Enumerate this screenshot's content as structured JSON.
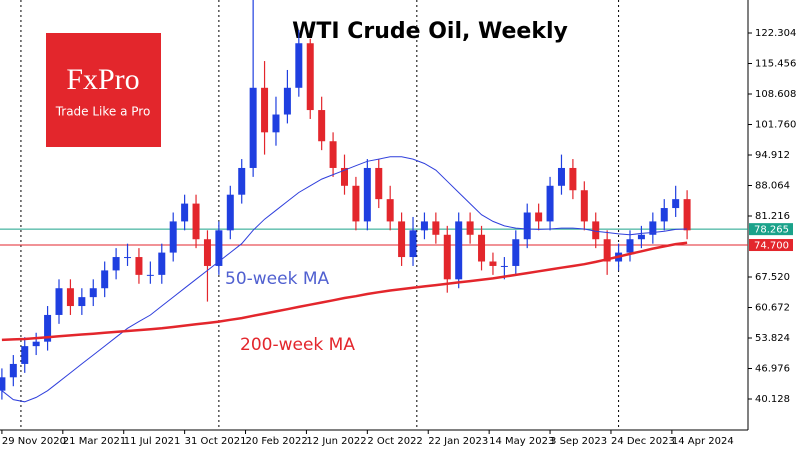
{
  "chart_data": {
    "type": "candlestick",
    "title": "WTI Crude Oil, Weekly",
    "logo": {
      "name": "FxPro",
      "tagline": "Trade Like a Pro"
    },
    "x": [
      0,
      3,
      6,
      9,
      12,
      15,
      18,
      21,
      24,
      27,
      30,
      33,
      36,
      39,
      42,
      45,
      48,
      51,
      54,
      57,
      60,
      63,
      66,
      69,
      72,
      75,
      78,
      81,
      84,
      87,
      90,
      93,
      96,
      99,
      102,
      105,
      108,
      111,
      114,
      117,
      120,
      123,
      126,
      129,
      132,
      135,
      138,
      141,
      144,
      147,
      150,
      153,
      156,
      159,
      162,
      165,
      168,
      171,
      174,
      177,
      180
    ],
    "open": [
      42,
      45,
      48,
      52,
      53,
      59,
      65,
      61,
      63,
      65,
      69,
      72,
      72,
      68,
      68,
      73,
      80,
      84,
      76,
      70,
      78,
      86,
      92,
      110,
      100,
      104,
      110,
      120,
      105,
      98,
      92,
      88,
      80,
      92,
      85,
      80,
      72,
      78,
      80,
      77,
      67,
      80,
      77,
      71,
      70,
      70,
      76,
      82,
      80,
      88,
      92,
      87,
      80,
      76,
      71,
      73,
      76,
      77,
      80,
      83,
      85
    ],
    "high": [
      47,
      50,
      54,
      55,
      61,
      67,
      67,
      65,
      67,
      71,
      74,
      75,
      74,
      71,
      75,
      82,
      86,
      86,
      78,
      80,
      88,
      94,
      130,
      116,
      108,
      114,
      123,
      121,
      108,
      100,
      95,
      90,
      94,
      94,
      88,
      82,
      81,
      82,
      82,
      79,
      82,
      82,
      79,
      73,
      72,
      78,
      84,
      84,
      90,
      95,
      94,
      89,
      82,
      78,
      75,
      78,
      79,
      82,
      85,
      88,
      87
    ],
    "low": [
      40,
      43,
      46,
      50,
      51,
      57,
      59,
      59,
      61,
      63,
      67,
      70,
      66,
      66,
      66,
      71,
      78,
      74,
      62,
      68,
      76,
      84,
      90,
      95,
      97,
      102,
      108,
      103,
      96,
      90,
      86,
      78,
      78,
      83,
      78,
      70,
      70,
      76,
      75,
      64,
      65,
      75,
      69,
      68,
      67,
      68,
      74,
      78,
      78,
      86,
      85,
      78,
      74,
      68,
      69,
      71,
      74,
      75,
      78,
      81,
      76
    ],
    "close": [
      45,
      48,
      52,
      53,
      59,
      65,
      61,
      63,
      65,
      69,
      72,
      72,
      68,
      68,
      73,
      80,
      84,
      76,
      70,
      78,
      86,
      92,
      110,
      100,
      104,
      110,
      120,
      105,
      98,
      92,
      88,
      80,
      92,
      85,
      80,
      72,
      78,
      80,
      77,
      67,
      80,
      77,
      71,
      70,
      70,
      76,
      82,
      80,
      88,
      92,
      87,
      80,
      76,
      71,
      73,
      76,
      77,
      80,
      83,
      85,
      78
    ],
    "up_color": "#1f3fe0",
    "down_color": "#e3262c",
    "series": [
      {
        "name": "50-week MA",
        "color": "#2f3fdc",
        "width": 1,
        "label_color": "#5060d0",
        "values": [
          42,
          40,
          39.5,
          40.5,
          42,
          44,
          46,
          48,
          50,
          52,
          54,
          56,
          57.5,
          59,
          61,
          63,
          65,
          67,
          69,
          71,
          73,
          75,
          78,
          80.5,
          82.5,
          84.5,
          86.5,
          88,
          89.5,
          90.5,
          91.5,
          92.5,
          93.5,
          94,
          94.5,
          94.5,
          94,
          93,
          91.5,
          89,
          86.5,
          84,
          81.5,
          80,
          79,
          78.5,
          78.3,
          78.2,
          78.3,
          78.5,
          78.5,
          78.3,
          77.8,
          77.5,
          77.2,
          77,
          77.3,
          77.5,
          77.8,
          78.2,
          78.3
        ]
      },
      {
        "name": "200-week MA",
        "color": "#e3262c",
        "width": 2.5,
        "label_color": "#e3262c",
        "values": [
          53.4,
          53.5,
          53.6,
          53.8,
          54,
          54.2,
          54.4,
          54.6,
          54.8,
          55,
          55.2,
          55.4,
          55.6,
          55.8,
          56,
          56.3,
          56.6,
          56.9,
          57.2,
          57.5,
          57.9,
          58.3,
          58.8,
          59.3,
          59.8,
          60.3,
          60.8,
          61.3,
          61.8,
          62.3,
          62.8,
          63.2,
          63.7,
          64.1,
          64.5,
          64.8,
          65.1,
          65.4,
          65.7,
          66,
          66.3,
          66.6,
          66.9,
          67.2,
          67.6,
          68,
          68.4,
          68.8,
          69.2,
          69.6,
          70,
          70.4,
          70.9,
          71.5,
          72.1,
          72.7,
          73.3,
          73.9,
          74.4,
          74.9,
          75.2
        ]
      }
    ],
    "hlines": [
      {
        "value": 78.265,
        "color": "#1aa28a"
      },
      {
        "value": 74.7,
        "label": "74.700",
        "color": "#e3262c"
      }
    ],
    "separators": [
      5,
      57,
      109,
      162
    ],
    "xlim": [
      -0.5,
      196
    ],
    "ylim": [
      33.17,
      129.71
    ],
    "xticks": [
      {
        "value": 0,
        "label": "29 Nov 2020"
      },
      {
        "value": 16,
        "label": "21 Mar 2021"
      },
      {
        "value": 32,
        "label": "11 Jul 2021"
      },
      {
        "value": 48,
        "label": "31 Oct 2021"
      },
      {
        "value": 64,
        "label": "20 Feb 2022"
      },
      {
        "value": 80,
        "label": "12 Jun 2022"
      },
      {
        "value": 96,
        "label": "2 Oct 2022"
      },
      {
        "value": 112,
        "label": "22 Jan 2023"
      },
      {
        "value": 128,
        "label": "14 May 2023"
      },
      {
        "value": 144,
        "label": "3 Sep 2023"
      },
      {
        "value": 160,
        "label": "24 Dec 2023"
      },
      {
        "value": 176,
        "label": "14 Apr 2024"
      }
    ],
    "yticks": [
      122.304,
      115.456,
      108.608,
      {
        "value": 101.76,
        "label": "101.760"
      },
      94.912,
      88.064,
      81.216,
      {
        "value": 67.52,
        "label": "67.520"
      },
      60.672,
      53.824,
      46.976,
      40.128
    ]
  }
}
